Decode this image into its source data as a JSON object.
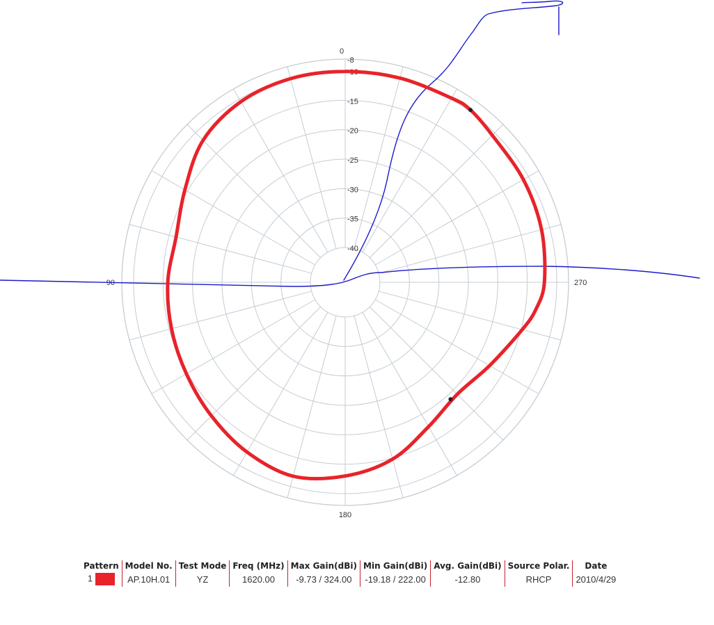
{
  "chart_data": {
    "type": "polar-line",
    "angle_labels": [
      "0",
      "90",
      "180",
      "270"
    ],
    "radial_axis": {
      "ticks": [
        -8,
        -10,
        -15,
        -20,
        -25,
        -30,
        -35,
        -40
      ],
      "tick_labels": [
        "-8",
        "-10",
        "-15",
        "-20",
        "-25",
        "-30",
        "-35",
        "-40"
      ],
      "range": [
        -40,
        -8
      ],
      "unit": "dBi"
    },
    "angular_grid_step_deg": 15,
    "grid": true,
    "series": [
      {
        "color": "#e8232a",
        "points": [
          [
            0,
            -10.1
          ],
          [
            15,
            -10.1
          ],
          [
            30,
            -10.5
          ],
          [
            45,
            -11.8
          ],
          [
            60,
            -14.5
          ],
          [
            75,
            -16.2
          ],
          [
            90,
            -15.8
          ],
          [
            105,
            -15.4
          ],
          [
            120,
            -14.8
          ],
          [
            135,
            -13.8
          ],
          [
            150,
            -12.6
          ],
          [
            165,
            -11.8
          ],
          [
            180,
            -13.0
          ],
          [
            195,
            -14.8
          ],
          [
            210,
            -17.6
          ],
          [
            225,
            -19.0
          ],
          [
            240,
            -17.6
          ],
          [
            255,
            -14.8
          ],
          [
            262,
            -13.2
          ],
          [
            270,
            -12.1
          ],
          [
            285,
            -11.4
          ],
          [
            300,
            -11.0
          ],
          [
            315,
            -10.6
          ],
          [
            324,
            -9.73
          ],
          [
            330,
            -9.8
          ],
          [
            345,
            -10.0
          ],
          [
            360,
            -10.1
          ]
        ],
        "markers": [
          {
            "angle": 324,
            "value": -9.73
          },
          {
            "angle": 222,
            "value": -19.18
          }
        ]
      }
    ],
    "annotation_color": "#1a1ac8",
    "legend_table": {
      "headers": [
        "Pattern",
        "Model No.",
        "Test Mode",
        "Freq (MHz)",
        "Max Gain(dBi)",
        "Min Gain(dBi)",
        "Avg. Gain(dBi)",
        "Source Polar.",
        "Date"
      ],
      "row": {
        "pattern": "1",
        "model": "AP.10H.01",
        "test_mode": "YZ",
        "freq": "1620.00",
        "max_gain": "-9.73 / 324.00",
        "min_gain": "-19.18 / 222.00",
        "avg_gain": "-12.80",
        "polar": "RHCP",
        "date": "2010/4/29"
      }
    }
  }
}
